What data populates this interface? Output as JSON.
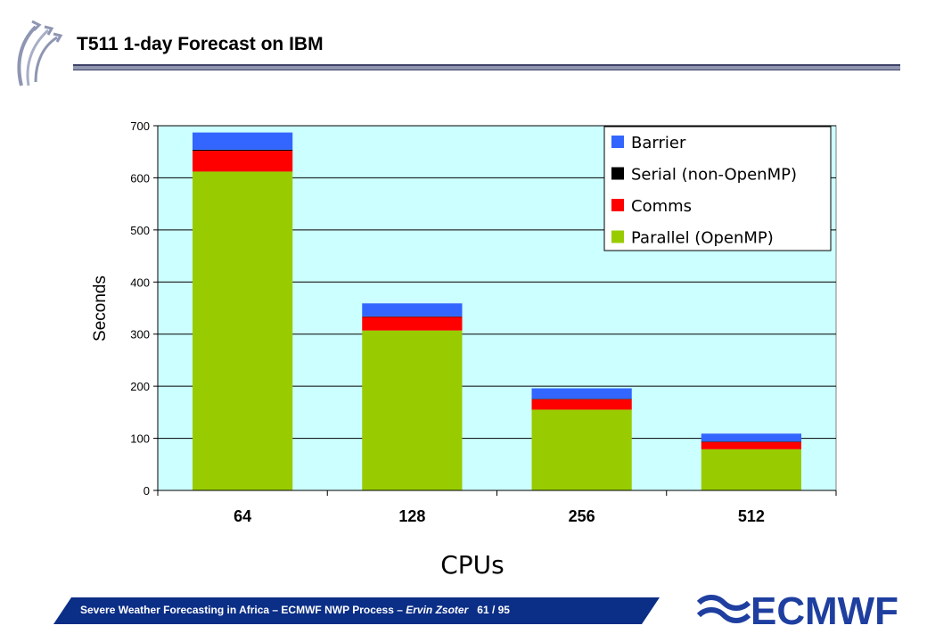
{
  "slide": {
    "title": "T511 1-day Forecast on IBM"
  },
  "footer": {
    "text_main": "Severe Weather Forecasting in Africa – ECMWF NWP Process – ",
    "author": "Ervin Zsoter",
    "page": "61 / 95"
  },
  "logo": {
    "text": "ECMWF"
  },
  "colors": {
    "plot_background": "#ccffff",
    "footer_bar": "#0b2e86",
    "logo_blue": "#1f3fa0",
    "title_rule": "#9096b0"
  },
  "icons": {
    "top_left": "ecmwf-arrows-icon",
    "bottom_right": "ecmwf-logo-icon"
  },
  "chart_data": {
    "type": "bar",
    "stacked": true,
    "title": "",
    "xlabel": "CPUs",
    "ylabel": "Seconds",
    "ylim": [
      0,
      700
    ],
    "yticks": [
      0,
      100,
      200,
      300,
      400,
      500,
      600,
      700
    ],
    "grid": true,
    "legend_position": "top-right",
    "categories": [
      "64",
      "128",
      "256",
      "512"
    ],
    "series": [
      {
        "name": "Parallel (OpenMP)",
        "color": "#99cc00",
        "values": [
          612,
          307,
          155,
          79
        ]
      },
      {
        "name": "Comms",
        "color": "#ff0000",
        "values": [
          40,
          26,
          20,
          14
        ]
      },
      {
        "name": "Serial (non-OpenMP)",
        "color": "#000000",
        "values": [
          2,
          1,
          1,
          1
        ]
      },
      {
        "name": "Barrier",
        "color": "#3366ff",
        "values": [
          33,
          25,
          20,
          15
        ]
      }
    ],
    "legend_order": [
      "Barrier",
      "Serial (non-OpenMP)",
      "Comms",
      "Parallel (OpenMP)"
    ]
  }
}
